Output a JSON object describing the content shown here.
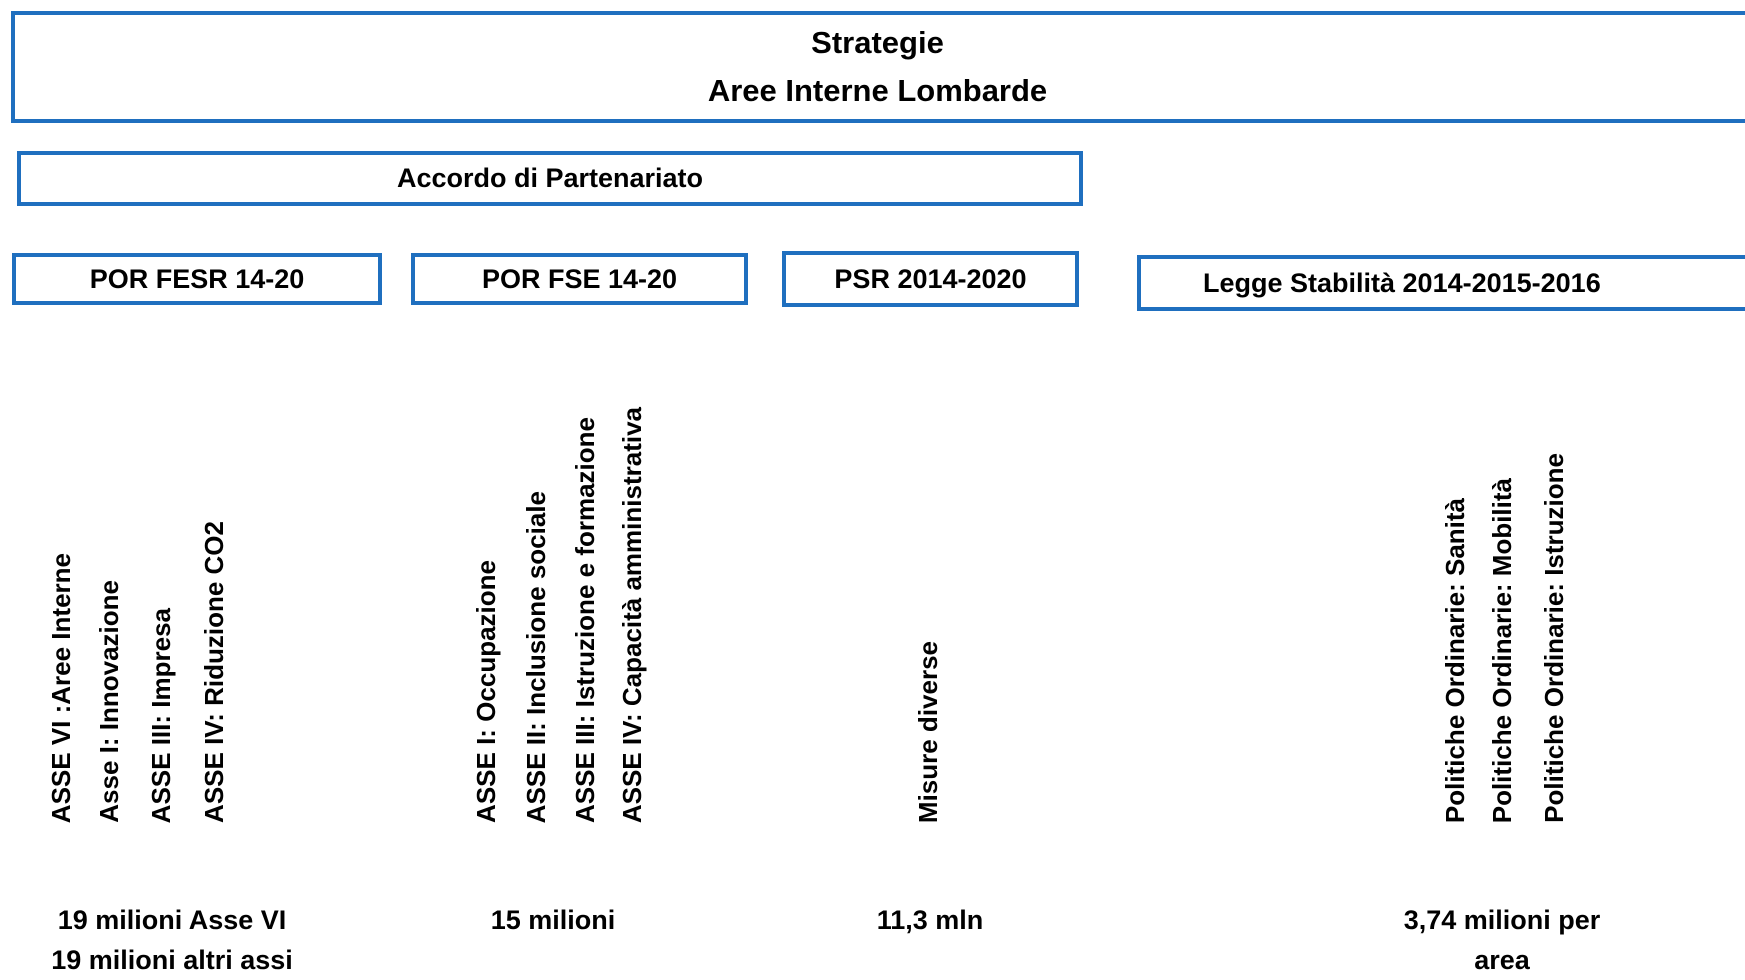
{
  "header": {
    "title": [
      "Strategie",
      "Aree Interne Lombarde"
    ]
  },
  "agreement": "Accordo di Partenariato",
  "programs": [
    {
      "name": "POR FESR 14-20",
      "items": [
        "ASSE VI :Aree Interne",
        "Asse I: Innovazione",
        "ASSE III: Impresa",
        "ASSE IV: Riduzione CO2"
      ],
      "amount": [
        "19 milioni Asse VI",
        "19 milioni altri assi"
      ]
    },
    {
      "name": "POR FSE 14-20",
      "items": [
        "ASSE I: Occupazione",
        "ASSE II: Inclusione sociale",
        "ASSE III: Istruzione e formazione",
        "ASSE IV: Capacità amministrativa"
      ],
      "amount": [
        "15 milioni"
      ]
    },
    {
      "name": "PSR 2014-2020",
      "items": [
        "Misure diverse"
      ],
      "amount": [
        "11,3 mln"
      ]
    },
    {
      "name": "Legge Stabilità 2014-2015-2016",
      "items": [
        "Politiche Ordinarie: Sanità",
        "Politiche Ordinarie: Mobilità",
        "Politiche Ordinarie: Istruzione"
      ],
      "amount": [
        "3,74 milioni per",
        "area"
      ]
    }
  ]
}
